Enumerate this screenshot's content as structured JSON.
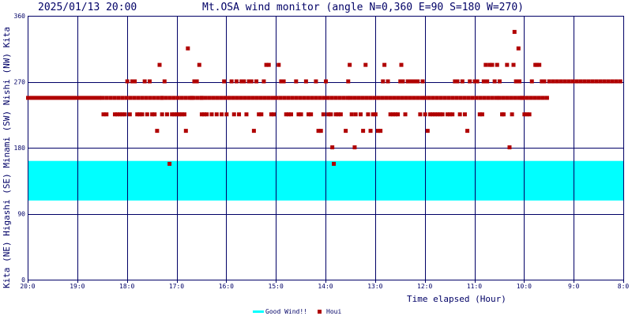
{
  "header": {
    "timestamp": "2025/01/13 20:00",
    "title": "Mt.OSA wind monitor (angle N=0,360 E=90 S=180 W=270)"
  },
  "y_axis": {
    "label": "Kita (NE) Higashi (SE) Minami (SW) Nishi (NW) Kita"
  },
  "x_axis": {
    "label": "Time elapsed (Hour)"
  },
  "legend": {
    "good_label": "Good Wind!!",
    "series_label": "Houi"
  },
  "colors": {
    "background": "#ffffff",
    "grid": "#000066",
    "band": "#00ffff",
    "series": "#b00000",
    "title_text": "#000066"
  },
  "chart_data": {
    "type": "scatter",
    "title": "Mt.OSA wind monitor (angle N=0,360 E=90 S=180 W=270)",
    "xlabel": "Time elapsed (Hour)",
    "ylabel": "Kita (NE) Higashi (SE) Minami (SW) Nishi (NW) Kita",
    "xlim": [
      20,
      8
    ],
    "ylim": [
      0,
      360
    ],
    "x_ticks": [
      20,
      19,
      18,
      17,
      16,
      15,
      14,
      13,
      12,
      11,
      10,
      9,
      8
    ],
    "x_tick_labels": [
      "20:0",
      "19:0",
      "18:0",
      "17:0",
      "16:0",
      "15:0",
      "14:0",
      "13:0",
      "12:0",
      "11:0",
      "10:0",
      "9:0",
      "8:0"
    ],
    "y_ticks": [
      0,
      90,
      180,
      270,
      360
    ],
    "y_tick_labels": [
      "0",
      "90",
      "180",
      "270",
      "360"
    ],
    "grid": true,
    "legend_position": "bottom-center",
    "band": {
      "name": "Good Wind!!",
      "y_range": [
        108,
        162
      ]
    },
    "series": [
      {
        "name": "Houi",
        "base": [
          [
            20,
            18.5,
            247.5
          ],
          [
            18.5,
            17.3,
            247.5
          ],
          [
            17.3,
            16.5,
            247.5
          ],
          [
            16.5,
            15.0,
            247.5
          ],
          [
            15.0,
            13.5,
            247.5
          ],
          [
            13.5,
            12.0,
            247.5
          ],
          [
            12.0,
            10.5,
            247.5
          ],
          [
            10.5,
            9.5,
            247.5
          ],
          [
            9.5,
            8.0,
            270
          ]
        ],
        "points": [
          [
            18.48,
            225
          ],
          [
            18.42,
            225
          ],
          [
            18.25,
            225
          ],
          [
            18.2,
            225
          ],
          [
            18.15,
            225
          ],
          [
            18.1,
            225
          ],
          [
            18.05,
            225
          ],
          [
            18.0,
            270
          ],
          [
            17.95,
            225
          ],
          [
            17.9,
            270
          ],
          [
            17.85,
            270
          ],
          [
            17.8,
            225
          ],
          [
            17.75,
            225
          ],
          [
            17.7,
            225
          ],
          [
            17.65,
            270
          ],
          [
            17.6,
            225
          ],
          [
            17.55,
            270
          ],
          [
            17.5,
            225
          ],
          [
            17.45,
            225
          ],
          [
            17.4,
            202.5
          ],
          [
            17.35,
            292.5
          ],
          [
            17.3,
            225
          ],
          [
            17.25,
            270
          ],
          [
            17.2,
            225
          ],
          [
            17.15,
            157.5
          ],
          [
            17.1,
            225
          ],
          [
            17.05,
            225
          ],
          [
            17.0,
            225
          ],
          [
            16.95,
            225
          ],
          [
            16.9,
            225
          ],
          [
            16.85,
            225
          ],
          [
            16.82,
            202.5
          ],
          [
            16.78,
            315
          ],
          [
            16.7,
            247.5
          ],
          [
            16.65,
            270
          ],
          [
            16.6,
            270
          ],
          [
            16.55,
            292.5
          ],
          [
            16.5,
            225
          ],
          [
            16.45,
            225
          ],
          [
            16.4,
            225
          ],
          [
            16.3,
            225
          ],
          [
            16.2,
            225
          ],
          [
            16.1,
            225
          ],
          [
            16.05,
            270
          ],
          [
            16.0,
            225
          ],
          [
            15.9,
            270
          ],
          [
            15.85,
            225
          ],
          [
            15.8,
            270
          ],
          [
            15.75,
            225
          ],
          [
            15.7,
            270
          ],
          [
            15.65,
            270
          ],
          [
            15.6,
            225
          ],
          [
            15.55,
            270
          ],
          [
            15.5,
            270
          ],
          [
            15.45,
            202.5
          ],
          [
            15.4,
            270
          ],
          [
            15.35,
            225
          ],
          [
            15.3,
            225
          ],
          [
            15.25,
            270
          ],
          [
            15.2,
            292.5
          ],
          [
            15.15,
            292.5
          ],
          [
            15.1,
            225
          ],
          [
            15.05,
            225
          ],
          [
            14.95,
            292.5
          ],
          [
            14.9,
            270
          ],
          [
            14.85,
            270
          ],
          [
            14.8,
            225
          ],
          [
            14.75,
            225
          ],
          [
            14.7,
            225
          ],
          [
            14.6,
            270
          ],
          [
            14.55,
            225
          ],
          [
            14.5,
            225
          ],
          [
            14.4,
            270
          ],
          [
            14.35,
            225
          ],
          [
            14.3,
            225
          ],
          [
            14.2,
            270
          ],
          [
            14.15,
            202.5
          ],
          [
            14.1,
            202.5
          ],
          [
            14.05,
            225
          ],
          [
            14.0,
            270
          ],
          [
            13.95,
            225
          ],
          [
            13.9,
            225
          ],
          [
            13.87,
            180
          ],
          [
            13.84,
            157.5
          ],
          [
            13.8,
            225
          ],
          [
            13.75,
            225
          ],
          [
            13.7,
            225
          ],
          [
            13.6,
            202.5
          ],
          [
            13.55,
            270
          ],
          [
            13.52,
            292.5
          ],
          [
            13.48,
            225
          ],
          [
            13.42,
            180
          ],
          [
            13.4,
            225
          ],
          [
            13.3,
            225
          ],
          [
            13.25,
            202.5
          ],
          [
            13.2,
            292.5
          ],
          [
            13.15,
            225
          ],
          [
            13.1,
            202.5
          ],
          [
            13.05,
            225
          ],
          [
            13.0,
            225
          ],
          [
            12.95,
            202.5
          ],
          [
            12.9,
            202.5
          ],
          [
            12.85,
            270
          ],
          [
            12.82,
            292.5
          ],
          [
            12.75,
            270
          ],
          [
            12.7,
            225
          ],
          [
            12.65,
            225
          ],
          [
            12.6,
            225
          ],
          [
            12.55,
            225
          ],
          [
            12.5,
            270
          ],
          [
            12.48,
            292.5
          ],
          [
            12.45,
            270
          ],
          [
            12.4,
            225
          ],
          [
            12.35,
            270
          ],
          [
            12.3,
            270
          ],
          [
            12.25,
            270
          ],
          [
            12.2,
            270
          ],
          [
            12.15,
            270
          ],
          [
            12.1,
            225
          ],
          [
            12.05,
            270
          ],
          [
            12.0,
            225
          ],
          [
            11.95,
            202.5
          ],
          [
            11.9,
            225
          ],
          [
            11.85,
            225
          ],
          [
            11.8,
            225
          ],
          [
            11.75,
            225
          ],
          [
            11.7,
            225
          ],
          [
            11.65,
            225
          ],
          [
            11.55,
            225
          ],
          [
            11.5,
            225
          ],
          [
            11.45,
            225
          ],
          [
            11.4,
            270
          ],
          [
            11.35,
            270
          ],
          [
            11.3,
            225
          ],
          [
            11.25,
            270
          ],
          [
            11.2,
            225
          ],
          [
            11.15,
            202.5
          ],
          [
            11.1,
            270
          ],
          [
            11.0,
            270
          ],
          [
            10.95,
            270
          ],
          [
            10.9,
            225
          ],
          [
            10.85,
            225
          ],
          [
            10.82,
            270
          ],
          [
            10.78,
            292.5
          ],
          [
            10.75,
            270
          ],
          [
            10.7,
            292.5
          ],
          [
            10.65,
            292.5
          ],
          [
            10.6,
            270
          ],
          [
            10.55,
            292.5
          ],
          [
            10.5,
            270
          ],
          [
            10.45,
            225
          ],
          [
            10.42,
            225
          ],
          [
            10.35,
            292.5
          ],
          [
            10.3,
            180
          ],
          [
            10.25,
            225
          ],
          [
            10.22,
            292.5
          ],
          [
            10.2,
            337.5
          ],
          [
            10.17,
            270
          ],
          [
            10.15,
            270
          ],
          [
            10.12,
            315
          ],
          [
            10.1,
            270
          ],
          [
            10.05,
            247.5
          ],
          [
            10.0,
            225
          ],
          [
            9.95,
            225
          ],
          [
            9.9,
            225
          ],
          [
            9.85,
            270
          ],
          [
            9.78,
            292.5
          ],
          [
            9.75,
            292.5
          ],
          [
            9.7,
            292.5
          ],
          [
            9.65,
            270
          ],
          [
            9.6,
            270
          ]
        ]
      }
    ]
  }
}
